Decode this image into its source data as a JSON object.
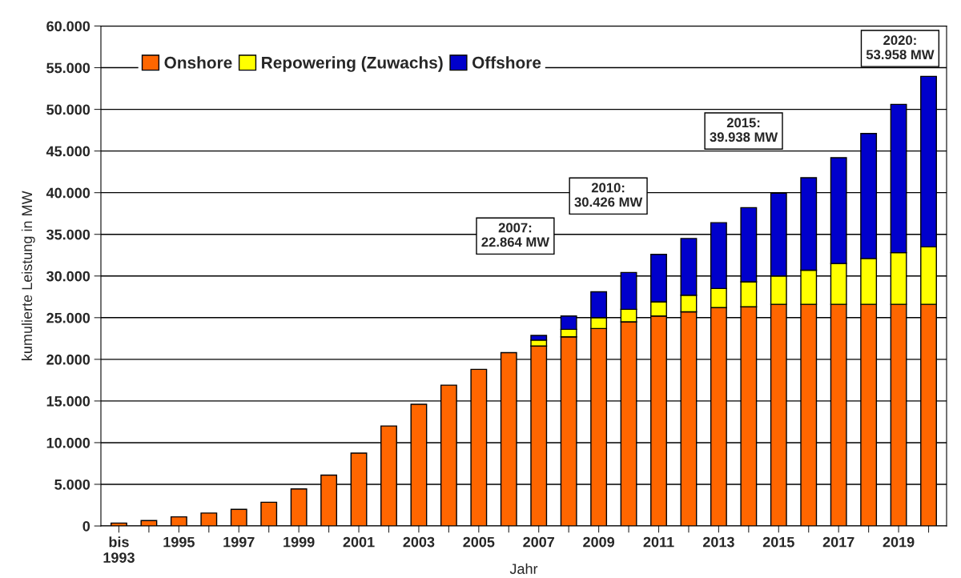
{
  "chart_data": {
    "type": "bar",
    "stacked": true,
    "xlabel": "Jahr",
    "ylabel": "kumulierte Leistung in MW",
    "categories": [
      "bis\n1993",
      null,
      "1995",
      null,
      "1997",
      null,
      "1999",
      null,
      "2001",
      null,
      "2003",
      null,
      "2005",
      null,
      "2007",
      null,
      "2009",
      null,
      "2011",
      null,
      "2013",
      null,
      "2015",
      null,
      "2017",
      null,
      "2019",
      null
    ],
    "series": [
      {
        "name": "Onshore",
        "color": "#ff6600",
        "values": [
          350,
          650,
          1100,
          1550,
          2000,
          2850,
          4450,
          6100,
          8750,
          12000,
          14600,
          16900,
          18800,
          20800,
          21600,
          22700,
          23700,
          24500,
          25200,
          25700,
          26200,
          26300,
          26600,
          26600,
          26600,
          26600,
          26600,
          26600
        ]
      },
      {
        "name": "Repowering (Zuwachs)",
        "color": "#ffff00",
        "values": [
          null,
          null,
          null,
          null,
          null,
          null,
          null,
          null,
          null,
          null,
          null,
          null,
          null,
          null,
          700,
          900,
          1300,
          1500,
          1700,
          2000,
          2300,
          3000,
          3400,
          4100,
          4900,
          5500,
          6200,
          6900
        ]
      },
      {
        "name": "Offshore",
        "color": "#0000cc",
        "values": [
          null,
          null,
          null,
          null,
          null,
          null,
          null,
          null,
          null,
          null,
          null,
          null,
          null,
          null,
          564,
          1600,
          3100,
          4426,
          5700,
          6800,
          7900,
          8900,
          9938,
          11100,
          12700,
          15000,
          17800,
          20458
        ]
      }
    ],
    "ylim": [
      0,
      60000
    ],
    "yticks": [
      {
        "value": 0,
        "label": "0"
      },
      {
        "value": 5000,
        "label": "5.000"
      },
      {
        "value": 10000,
        "label": "10.000"
      },
      {
        "value": 15000,
        "label": "15.000"
      },
      {
        "value": 20000,
        "label": "20.000"
      },
      {
        "value": 25000,
        "label": "25.000"
      },
      {
        "value": 30000,
        "label": "30.000"
      },
      {
        "value": 35000,
        "label": "35.000"
      },
      {
        "value": 40000,
        "label": "40.000"
      },
      {
        "value": 45000,
        "label": "45.000"
      },
      {
        "value": 50000,
        "label": "50.000"
      },
      {
        "value": 55000,
        "label": "55.000"
      },
      {
        "value": 60000,
        "label": "60.000"
      }
    ],
    "grid": "y",
    "legend": "top left",
    "annotations": [
      "2007:\n22.864 MW",
      "2010:\n30.426 MW",
      "2015:\n39.938 MW",
      "2020:\n53.958 MW"
    ]
  }
}
